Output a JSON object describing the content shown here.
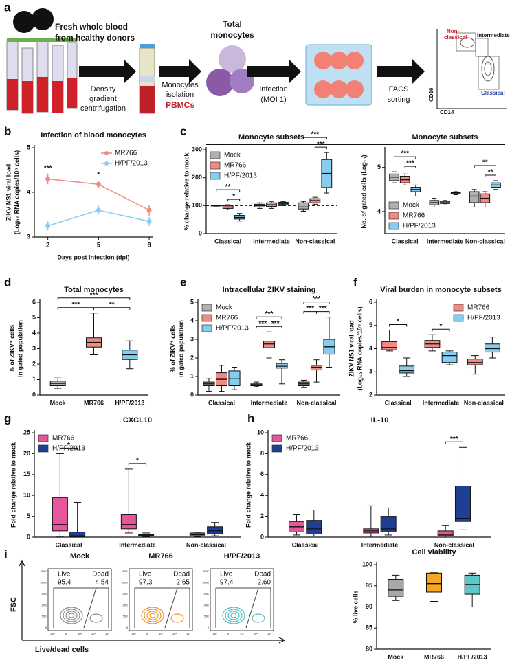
{
  "panel_a": {
    "letter": "a",
    "donors": [
      "Fresh whole blood",
      "from healthy donors"
    ],
    "step1": [
      "Density",
      "gradient",
      "centrifugation"
    ],
    "step2": [
      "Monocytes",
      "isolation"
    ],
    "pbmcs": "PBMCs",
    "monocytes": [
      "Total",
      "monocytes"
    ],
    "step3": [
      "Infection",
      "(MOI 1)"
    ],
    "step4": [
      "FACS",
      "sorting"
    ],
    "facs": {
      "nonclassical": [
        "Non-",
        "classical"
      ],
      "intermediate": "Intermediate",
      "classical": "Classical",
      "y": "CD16",
      "x": "CD14"
    }
  },
  "chart_data": [
    {
      "letter": "b",
      "type": "line",
      "title": "Infection of blood monocytes",
      "ylabel": [
        "ZIKV NS1 viral load",
        "(Log₁₀ RNA copies/10⁵ cells)"
      ],
      "xlabel": "Days post infection (dpi)",
      "x": [
        2,
        5,
        8
      ],
      "xlim": [
        1.2,
        8.2
      ],
      "xticks": [
        2,
        5,
        8
      ],
      "ylim": [
        3,
        5
      ],
      "yticks": [
        3,
        4,
        5
      ],
      "legend": "upper right",
      "series": [
        {
          "name": "MR766",
          "color": "#f08a85",
          "values": [
            4.3,
            4.18,
            3.6
          ],
          "errors": [
            0.12,
            0.08,
            0.12
          ]
        },
        {
          "name": "H/PF/2013",
          "color": "#87cdf0",
          "values": [
            3.25,
            3.6,
            3.35
          ],
          "errors": [
            0.1,
            0.1,
            0.1
          ]
        }
      ],
      "annotations": [
        {
          "text": "***",
          "at": 0
        },
        {
          "text": "*",
          "at": 1
        }
      ]
    },
    {
      "letter": "c",
      "type": "box",
      "title": "Monocyte subsets",
      "ylabel": [
        "% change relative to mock"
      ],
      "categories": [
        "Classical",
        "Intermediate",
        "Non-classical"
      ],
      "ylim": [
        0,
        300
      ],
      "yticks": [
        0,
        100,
        200,
        300
      ],
      "reference_line": 100,
      "legend": "upper left",
      "series": [
        {
          "name": "Mock",
          "color": "#b0b0b0",
          "values": [
            {
              "min": 98,
              "q1": 99,
              "median": 100,
              "q3": 101,
              "max": 102
            },
            {
              "min": 90,
              "q1": 95,
              "median": 100,
              "q3": 105,
              "max": 110
            },
            {
              "min": 80,
              "q1": 88,
              "median": 95,
              "q3": 110,
              "max": 115
            }
          ]
        },
        {
          "name": "MR766",
          "color": "#f08a85",
          "values": [
            {
              "min": 85,
              "q1": 90,
              "median": 95,
              "q3": 100,
              "max": 103
            },
            {
              "min": 90,
              "q1": 97,
              "median": 103,
              "q3": 110,
              "max": 115
            },
            {
              "min": 105,
              "q1": 110,
              "median": 118,
              "q3": 125,
              "max": 130
            }
          ]
        },
        {
          "name": "H/PF/2013",
          "color": "#87cdf0",
          "values": [
            {
              "min": 45,
              "q1": 52,
              "median": 58,
              "q3": 65,
              "max": 72
            },
            {
              "min": 100,
              "q1": 105,
              "median": 108,
              "q3": 112,
              "max": 115
            },
            {
              "min": 145,
              "q1": 165,
              "median": 215,
              "q3": 265,
              "max": 290
            }
          ]
        }
      ],
      "annotations": [
        {
          "text": "*",
          "category": 0,
          "between": [
            1,
            2
          ]
        },
        {
          "text": "**",
          "category": 0,
          "between": [
            0,
            2
          ]
        },
        {
          "text": "***",
          "category": 2,
          "between": [
            1,
            2
          ]
        },
        {
          "text": "***",
          "category": 2,
          "between": [
            0,
            2
          ]
        }
      ]
    },
    {
      "type": "box",
      "title": "Monocyte subsets",
      "ylabel": [
        "No. of gated cells (Log₁₀)"
      ],
      "categories": [
        "Classical",
        "Intermediate",
        "Non-classical"
      ],
      "ylim": [
        3.5,
        5.4
      ],
      "yticks": [
        4,
        5
      ],
      "legend": "lower left",
      "series": [
        {
          "name": "Mock",
          "color": "#b0b0b0",
          "values": [
            {
              "min": 4.65,
              "q1": 4.7,
              "median": 4.78,
              "q3": 4.85,
              "max": 4.9
            },
            {
              "min": 4.1,
              "q1": 4.15,
              "median": 4.2,
              "q3": 4.25,
              "max": 4.3
            },
            {
              "min": 4.1,
              "q1": 4.2,
              "median": 4.35,
              "q3": 4.45,
              "max": 4.5
            }
          ]
        },
        {
          "name": "MR766",
          "color": "#f08a85",
          "values": [
            {
              "min": 4.6,
              "q1": 4.65,
              "median": 4.72,
              "q3": 4.8,
              "max": 4.85
            },
            {
              "min": 4.15,
              "q1": 4.18,
              "median": 4.2,
              "q3": 4.23,
              "max": 4.25
            },
            {
              "min": 4.1,
              "q1": 4.2,
              "median": 4.3,
              "q3": 4.4,
              "max": 4.45
            }
          ]
        },
        {
          "name": "H/PF/2013",
          "color": "#87cdf0",
          "values": [
            {
              "min": 4.35,
              "q1": 4.45,
              "median": 4.5,
              "q3": 4.55,
              "max": 4.6
            },
            {
              "min": 4.38,
              "q1": 4.4,
              "median": 4.42,
              "q3": 4.43,
              "max": 4.45
            },
            {
              "min": 4.5,
              "q1": 4.55,
              "median": 4.6,
              "q3": 4.65,
              "max": 4.7
            }
          ]
        }
      ],
      "annotations": [
        {
          "text": "***",
          "category": 0,
          "between": [
            1,
            2
          ]
        },
        {
          "text": "***",
          "category": 0,
          "between": [
            0,
            2
          ]
        },
        {
          "text": "**",
          "category": 2,
          "between": [
            1,
            2
          ]
        },
        {
          "text": "**",
          "category": 2,
          "between": [
            0,
            2
          ]
        }
      ]
    },
    {
      "letter": "d",
      "type": "box",
      "title": "Total monocytes",
      "ylabel": [
        "% of ZIKV⁺ cells",
        "in gated population"
      ],
      "categories": [
        "Mock",
        "MR766",
        "H/PF/2013"
      ],
      "colors": [
        "#b0b0b0",
        "#f08a85",
        "#87cdf0"
      ],
      "ylim": [
        0,
        6
      ],
      "yticks": [
        0,
        1,
        2,
        3,
        4,
        5,
        6
      ],
      "values": [
        {
          "min": 0.4,
          "q1": 0.6,
          "median": 0.75,
          "q3": 0.9,
          "max": 1.1
        },
        {
          "min": 2.6,
          "q1": 3.1,
          "median": 3.4,
          "q3": 3.7,
          "max": 5.3
        },
        {
          "min": 1.7,
          "q1": 2.3,
          "median": 2.6,
          "q3": 2.9,
          "max": 3.5
        }
      ],
      "annotations": [
        {
          "text": "***",
          "between": [
            0,
            1
          ]
        },
        {
          "text": "**",
          "between": [
            1,
            2
          ]
        },
        {
          "text": "***",
          "between": [
            0,
            2
          ]
        }
      ]
    },
    {
      "letter": "e",
      "type": "box",
      "title": "Intracellular ZIKV staining",
      "ylabel": [
        "% of ZIKV⁺ cells",
        "in gated population"
      ],
      "categories": [
        "Classical",
        "Intermediate",
        "Non-classical"
      ],
      "ylim": [
        0,
        5
      ],
      "yticks": [
        0,
        1,
        2,
        3,
        4,
        5
      ],
      "legend": "upper left",
      "series": [
        {
          "name": "Mock",
          "color": "#b0b0b0",
          "values": [
            {
              "min": 0.2,
              "q1": 0.5,
              "median": 0.6,
              "q3": 0.7,
              "max": 0.9
            },
            {
              "min": 0.45,
              "q1": 0.5,
              "median": 0.55,
              "q3": 0.6,
              "max": 0.7
            },
            {
              "min": 0.4,
              "q1": 0.5,
              "median": 0.6,
              "q3": 0.7,
              "max": 0.8
            }
          ]
        },
        {
          "name": "MR766",
          "color": "#f08a85",
          "values": [
            {
              "min": 0.2,
              "q1": 0.5,
              "median": 0.85,
              "q3": 1.2,
              "max": 1.6
            },
            {
              "min": 2.0,
              "q1": 2.55,
              "median": 2.75,
              "q3": 2.9,
              "max": 3.4
            },
            {
              "min": 0.7,
              "q1": 1.35,
              "median": 1.5,
              "q3": 1.6,
              "max": 1.9
            }
          ]
        },
        {
          "name": "H/PF/2013",
          "color": "#87cdf0",
          "values": [
            {
              "min": 0.3,
              "q1": 0.5,
              "median": 0.9,
              "q3": 1.3,
              "max": 1.5
            },
            {
              "min": 0.6,
              "q1": 1.45,
              "median": 1.55,
              "q3": 1.7,
              "max": 1.9
            },
            {
              "min": 1.5,
              "q1": 2.2,
              "median": 2.6,
              "q3": 3.0,
              "max": 4.2
            }
          ]
        }
      ],
      "annotations": [
        {
          "text": "***",
          "category": 1,
          "between": [
            0,
            1
          ]
        },
        {
          "text": "***",
          "category": 1,
          "between": [
            1,
            2
          ]
        },
        {
          "text": "***",
          "category": 1,
          "between": [
            0,
            2
          ]
        },
        {
          "text": "***",
          "category": 2,
          "between": [
            0,
            1
          ]
        },
        {
          "text": "***",
          "category": 2,
          "between": [
            1,
            2
          ]
        },
        {
          "text": "***",
          "category": 2,
          "between": [
            0,
            2
          ]
        }
      ]
    },
    {
      "letter": "f",
      "type": "box",
      "title": "Viral burden in monocyte subsets",
      "ylabel": [
        "ZIKV NS1 viral load",
        "(Log₁₀ RNA copies/10⁵ cells)"
      ],
      "categories": [
        "Classical",
        "Intermediate",
        "Non-classical"
      ],
      "ylim": [
        2,
        6
      ],
      "yticks": [
        2,
        3,
        4,
        5,
        6
      ],
      "legend": "upper right",
      "series": [
        {
          "name": "MR766",
          "color": "#f08a85",
          "values": [
            {
              "min": 3.9,
              "q1": 3.95,
              "median": 4.05,
              "q3": 4.3,
              "max": 4.8
            },
            {
              "min": 3.9,
              "q1": 4.05,
              "median": 4.2,
              "q3": 4.35,
              "max": 4.6
            },
            {
              "min": 2.9,
              "q1": 3.3,
              "median": 3.4,
              "q3": 3.55,
              "max": 3.7
            }
          ]
        },
        {
          "name": "H/PF/2013",
          "color": "#87cdf0",
          "values": [
            {
              "min": 2.8,
              "q1": 2.95,
              "median": 3.05,
              "q3": 3.25,
              "max": 3.6
            },
            {
              "min": 3.3,
              "q1": 3.4,
              "median": 3.7,
              "q3": 3.85,
              "max": 3.9
            },
            {
              "min": 3.6,
              "q1": 3.85,
              "median": 4.0,
              "q3": 4.2,
              "max": 4.5
            }
          ]
        }
      ],
      "annotations": [
        {
          "text": "*",
          "category": 0,
          "between": [
            0,
            1
          ]
        },
        {
          "text": "*",
          "category": 1,
          "between": [
            0,
            1
          ]
        }
      ]
    },
    {
      "letter": "g",
      "type": "box",
      "title": "CXCL10",
      "ylabel": [
        "Fold change relative to mock"
      ],
      "categories": [
        "Classical",
        "Intermediate",
        "Non-classical"
      ],
      "ylim": [
        0,
        25
      ],
      "yticks": [
        0,
        5,
        10,
        15,
        20,
        25
      ],
      "legend": "upper left",
      "series": [
        {
          "name": "MR766",
          "color": "#e8559a",
          "values": [
            {
              "min": 0.2,
              "q1": 1.5,
              "median": 3,
              "q3": 9.5,
              "max": 20
            },
            {
              "min": 1,
              "q1": 2,
              "median": 3,
              "q3": 5.5,
              "max": 16.3
            },
            {
              "min": 0.1,
              "q1": 0.3,
              "median": 0.6,
              "q3": 1,
              "max": 1.2
            }
          ]
        },
        {
          "name": "H/PF/2013",
          "color": "#1f3f95",
          "values": [
            {
              "min": 0,
              "q1": 0.1,
              "median": 0.3,
              "q3": 1.2,
              "max": 8.3
            },
            {
              "min": 0.1,
              "q1": 0.3,
              "median": 0.5,
              "q3": 0.7,
              "max": 1
            },
            {
              "min": 0.3,
              "q1": 0.8,
              "median": 1.5,
              "q3": 2.5,
              "max": 3.5
            }
          ]
        }
      ],
      "annotations": [
        {
          "text": "*",
          "category": 0,
          "between": [
            0,
            1
          ]
        },
        {
          "text": "*",
          "category": 1,
          "between": [
            0,
            1
          ]
        }
      ]
    },
    {
      "letter": "h",
      "type": "box",
      "title": "IL-10",
      "ylabel": [
        "Fold change relative to mock"
      ],
      "categories": [
        "Classical",
        "Intermediate",
        "Non-classical"
      ],
      "ylim": [
        0,
        10
      ],
      "yticks": [
        0,
        2,
        4,
        6,
        8,
        10
      ],
      "legend": "upper left",
      "series": [
        {
          "name": "MR766",
          "color": "#e8559a",
          "values": [
            {
              "min": 0.2,
              "q1": 0.5,
              "median": 1,
              "q3": 1.5,
              "max": 2.2
            },
            {
              "min": 0,
              "q1": 0.4,
              "median": 0.6,
              "q3": 0.8,
              "max": 3
            },
            {
              "min": 0,
              "q1": 0.1,
              "median": 0.2,
              "q3": 0.6,
              "max": 1.1
            }
          ]
        },
        {
          "name": "H/PF/2013",
          "color": "#1f3f95",
          "values": [
            {
              "min": 0.1,
              "q1": 0.3,
              "median": 0.8,
              "q3": 1.6,
              "max": 2.6
            },
            {
              "min": 0.2,
              "q1": 0.5,
              "median": 0.8,
              "q3": 2,
              "max": 2.8
            },
            {
              "min": 0.7,
              "q1": 1.5,
              "median": 1.8,
              "q3": 4.9,
              "max": 8.6
            }
          ]
        }
      ],
      "annotations": [
        {
          "text": "***",
          "category": 2,
          "between": [
            0,
            1
          ]
        }
      ]
    },
    {
      "type": "box",
      "title": "Cell viability",
      "ylabel": [
        "% live cells"
      ],
      "categories": [
        "Mock",
        "MR766",
        "H/PF/2013"
      ],
      "colors": [
        "#a8a8a8",
        "#f5a623",
        "#5ec8c8"
      ],
      "ylim": [
        80,
        100
      ],
      "yticks": [
        80,
        85,
        90,
        95,
        100
      ],
      "values": [
        {
          "min": 91.5,
          "q1": 92.5,
          "median": 94,
          "q3": 96.5,
          "max": 97.5
        },
        {
          "min": 91.3,
          "q1": 93.5,
          "median": 95.5,
          "q3": 98,
          "max": 98.2
        },
        {
          "min": 90,
          "q1": 93,
          "median": 95.3,
          "q3": 97.5,
          "max": 98
        }
      ]
    }
  ],
  "panel_i_flow": {
    "letter": "i",
    "ylabel": "FSC",
    "xlabel": "Live/dead cells",
    "live_label": "Live",
    "dead_label": "Dead",
    "yticks": [
      "250K",
      "200K",
      "150K",
      "100K",
      "50K",
      "0"
    ],
    "xticks": [
      "-10³",
      "0",
      "10³",
      "10⁴",
      "10⁵"
    ],
    "plots": [
      {
        "title": "Mock",
        "color": "#8c8c8c",
        "live": 95.4,
        "dead": 4.54
      },
      {
        "title": "MR766",
        "color": "#f29a28",
        "live": 97.3,
        "dead": 2.65
      },
      {
        "title": "H/PF/2013",
        "color": "#4cc0c4",
        "live": 97.4,
        "dead": {
          "value": 2.6,
          "label": "2.60"
        }
      }
    ]
  }
}
